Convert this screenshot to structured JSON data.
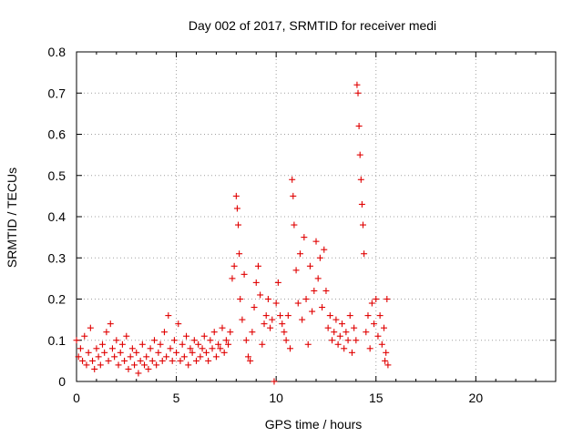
{
  "chart_data": {
    "type": "scatter",
    "title": "Day 002 of 2017, SRMTID for receiver medi",
    "xlabel": "GPS time / hours",
    "ylabel": "SRMTID / TECUs",
    "xlim": [
      0,
      24
    ],
    "ylim": [
      0,
      0.8
    ],
    "xticks": [
      0,
      5,
      10,
      15,
      20
    ],
    "yticks": [
      0,
      0.1,
      0.2,
      0.3,
      0.4,
      0.5,
      0.6,
      0.7,
      0.8
    ],
    "xtick_labels": [
      "0",
      "5",
      "10",
      "15",
      "20"
    ],
    "ytick_labels": [
      "0",
      "0.1",
      "0.2",
      "0.3",
      "0.4",
      "0.5",
      "0.6",
      "0.7",
      "0.8"
    ],
    "grid": true,
    "marker": "+",
    "color": "#e00000",
    "series": [
      {
        "points": [
          [
            0.0,
            0.1
          ],
          [
            0.1,
            0.06
          ],
          [
            0.2,
            0.08
          ],
          [
            0.3,
            0.05
          ],
          [
            0.4,
            0.11
          ],
          [
            0.5,
            0.04
          ],
          [
            0.6,
            0.07
          ],
          [
            0.7,
            0.13
          ],
          [
            0.8,
            0.05
          ],
          [
            0.9,
            0.03
          ],
          [
            1.0,
            0.08
          ],
          [
            1.1,
            0.06
          ],
          [
            1.2,
            0.04
          ],
          [
            1.3,
            0.09
          ],
          [
            1.4,
            0.07
          ],
          [
            1.5,
            0.12
          ],
          [
            1.6,
            0.05
          ],
          [
            1.7,
            0.14
          ],
          [
            1.8,
            0.08
          ],
          [
            1.9,
            0.06
          ],
          [
            2.0,
            0.1
          ],
          [
            2.1,
            0.04
          ],
          [
            2.2,
            0.07
          ],
          [
            2.3,
            0.09
          ],
          [
            2.4,
            0.05
          ],
          [
            2.5,
            0.11
          ],
          [
            2.6,
            0.03
          ],
          [
            2.7,
            0.06
          ],
          [
            2.8,
            0.08
          ],
          [
            2.9,
            0.04
          ],
          [
            3.0,
            0.07
          ],
          [
            3.1,
            0.02
          ],
          [
            3.2,
            0.05
          ],
          [
            3.3,
            0.09
          ],
          [
            3.4,
            0.04
          ],
          [
            3.5,
            0.06
          ],
          [
            3.6,
            0.03
          ],
          [
            3.7,
            0.08
          ],
          [
            3.8,
            0.05
          ],
          [
            3.9,
            0.1
          ],
          [
            4.0,
            0.04
          ],
          [
            4.1,
            0.07
          ],
          [
            4.2,
            0.09
          ],
          [
            4.3,
            0.05
          ],
          [
            4.4,
            0.12
          ],
          [
            4.5,
            0.06
          ],
          [
            4.6,
            0.16
          ],
          [
            4.7,
            0.08
          ],
          [
            4.8,
            0.05
          ],
          [
            4.9,
            0.1
          ],
          [
            5.0,
            0.07
          ],
          [
            5.1,
            0.14
          ],
          [
            5.2,
            0.05
          ],
          [
            5.3,
            0.09
          ],
          [
            5.4,
            0.06
          ],
          [
            5.5,
            0.11
          ],
          [
            5.6,
            0.04
          ],
          [
            5.7,
            0.08
          ],
          [
            5.8,
            0.07
          ],
          [
            5.9,
            0.1
          ],
          [
            6.0,
            0.05
          ],
          [
            6.1,
            0.09
          ],
          [
            6.2,
            0.06
          ],
          [
            6.3,
            0.08
          ],
          [
            6.4,
            0.11
          ],
          [
            6.5,
            0.07
          ],
          [
            6.6,
            0.05
          ],
          [
            6.7,
            0.1
          ],
          [
            6.8,
            0.08
          ],
          [
            6.9,
            0.12
          ],
          [
            7.0,
            0.06
          ],
          [
            7.1,
            0.09
          ],
          [
            7.2,
            0.08
          ],
          [
            7.3,
            0.13
          ],
          [
            7.4,
            0.07
          ],
          [
            7.5,
            0.1
          ],
          [
            7.6,
            0.09
          ],
          [
            7.7,
            0.12
          ],
          [
            7.8,
            0.25
          ],
          [
            7.9,
            0.28
          ],
          [
            8.0,
            0.45
          ],
          [
            8.05,
            0.42
          ],
          [
            8.1,
            0.38
          ],
          [
            8.15,
            0.31
          ],
          [
            8.2,
            0.2
          ],
          [
            8.3,
            0.15
          ],
          [
            8.4,
            0.26
          ],
          [
            8.5,
            0.1
          ],
          [
            8.6,
            0.06
          ],
          [
            8.7,
            0.05
          ],
          [
            8.8,
            0.12
          ],
          [
            8.9,
            0.18
          ],
          [
            9.0,
            0.24
          ],
          [
            9.1,
            0.28
          ],
          [
            9.2,
            0.21
          ],
          [
            9.3,
            0.09
          ],
          [
            9.4,
            0.14
          ],
          [
            9.5,
            0.16
          ],
          [
            9.6,
            0.2
          ],
          [
            9.7,
            0.13
          ],
          [
            9.8,
            0.15
          ],
          [
            9.9,
            0.0
          ],
          [
            10.0,
            0.19
          ],
          [
            10.1,
            0.24
          ],
          [
            10.2,
            0.16
          ],
          [
            10.3,
            0.14
          ],
          [
            10.4,
            0.12
          ],
          [
            10.5,
            0.1
          ],
          [
            10.6,
            0.16
          ],
          [
            10.7,
            0.08
          ],
          [
            10.8,
            0.49
          ],
          [
            10.85,
            0.45
          ],
          [
            10.9,
            0.38
          ],
          [
            11.0,
            0.27
          ],
          [
            11.1,
            0.19
          ],
          [
            11.2,
            0.31
          ],
          [
            11.3,
            0.15
          ],
          [
            11.4,
            0.35
          ],
          [
            11.5,
            0.2
          ],
          [
            11.6,
            0.09
          ],
          [
            11.7,
            0.28
          ],
          [
            11.8,
            0.17
          ],
          [
            11.9,
            0.22
          ],
          [
            12.0,
            0.34
          ],
          [
            12.1,
            0.25
          ],
          [
            12.2,
            0.3
          ],
          [
            12.3,
            0.18
          ],
          [
            12.4,
            0.32
          ],
          [
            12.5,
            0.22
          ],
          [
            12.6,
            0.13
          ],
          [
            12.7,
            0.16
          ],
          [
            12.8,
            0.1
          ],
          [
            12.9,
            0.12
          ],
          [
            13.0,
            0.15
          ],
          [
            13.1,
            0.09
          ],
          [
            13.2,
            0.11
          ],
          [
            13.3,
            0.14
          ],
          [
            13.4,
            0.08
          ],
          [
            13.5,
            0.12
          ],
          [
            13.6,
            0.1
          ],
          [
            13.7,
            0.16
          ],
          [
            13.8,
            0.07
          ],
          [
            13.9,
            0.13
          ],
          [
            14.0,
            0.1
          ],
          [
            14.05,
            0.72
          ],
          [
            14.1,
            0.7
          ],
          [
            14.15,
            0.62
          ],
          [
            14.2,
            0.55
          ],
          [
            14.25,
            0.49
          ],
          [
            14.3,
            0.43
          ],
          [
            14.35,
            0.38
          ],
          [
            14.4,
            0.31
          ],
          [
            14.5,
            0.12
          ],
          [
            14.6,
            0.16
          ],
          [
            14.7,
            0.08
          ],
          [
            14.8,
            0.19
          ],
          [
            14.9,
            0.14
          ],
          [
            15.0,
            0.2
          ],
          [
            15.1,
            0.11
          ],
          [
            15.2,
            0.16
          ],
          [
            15.3,
            0.09
          ],
          [
            15.4,
            0.13
          ],
          [
            15.5,
            0.07
          ],
          [
            15.6,
            0.04
          ],
          [
            15.55,
            0.2
          ],
          [
            15.45,
            0.05
          ]
        ]
      }
    ]
  }
}
